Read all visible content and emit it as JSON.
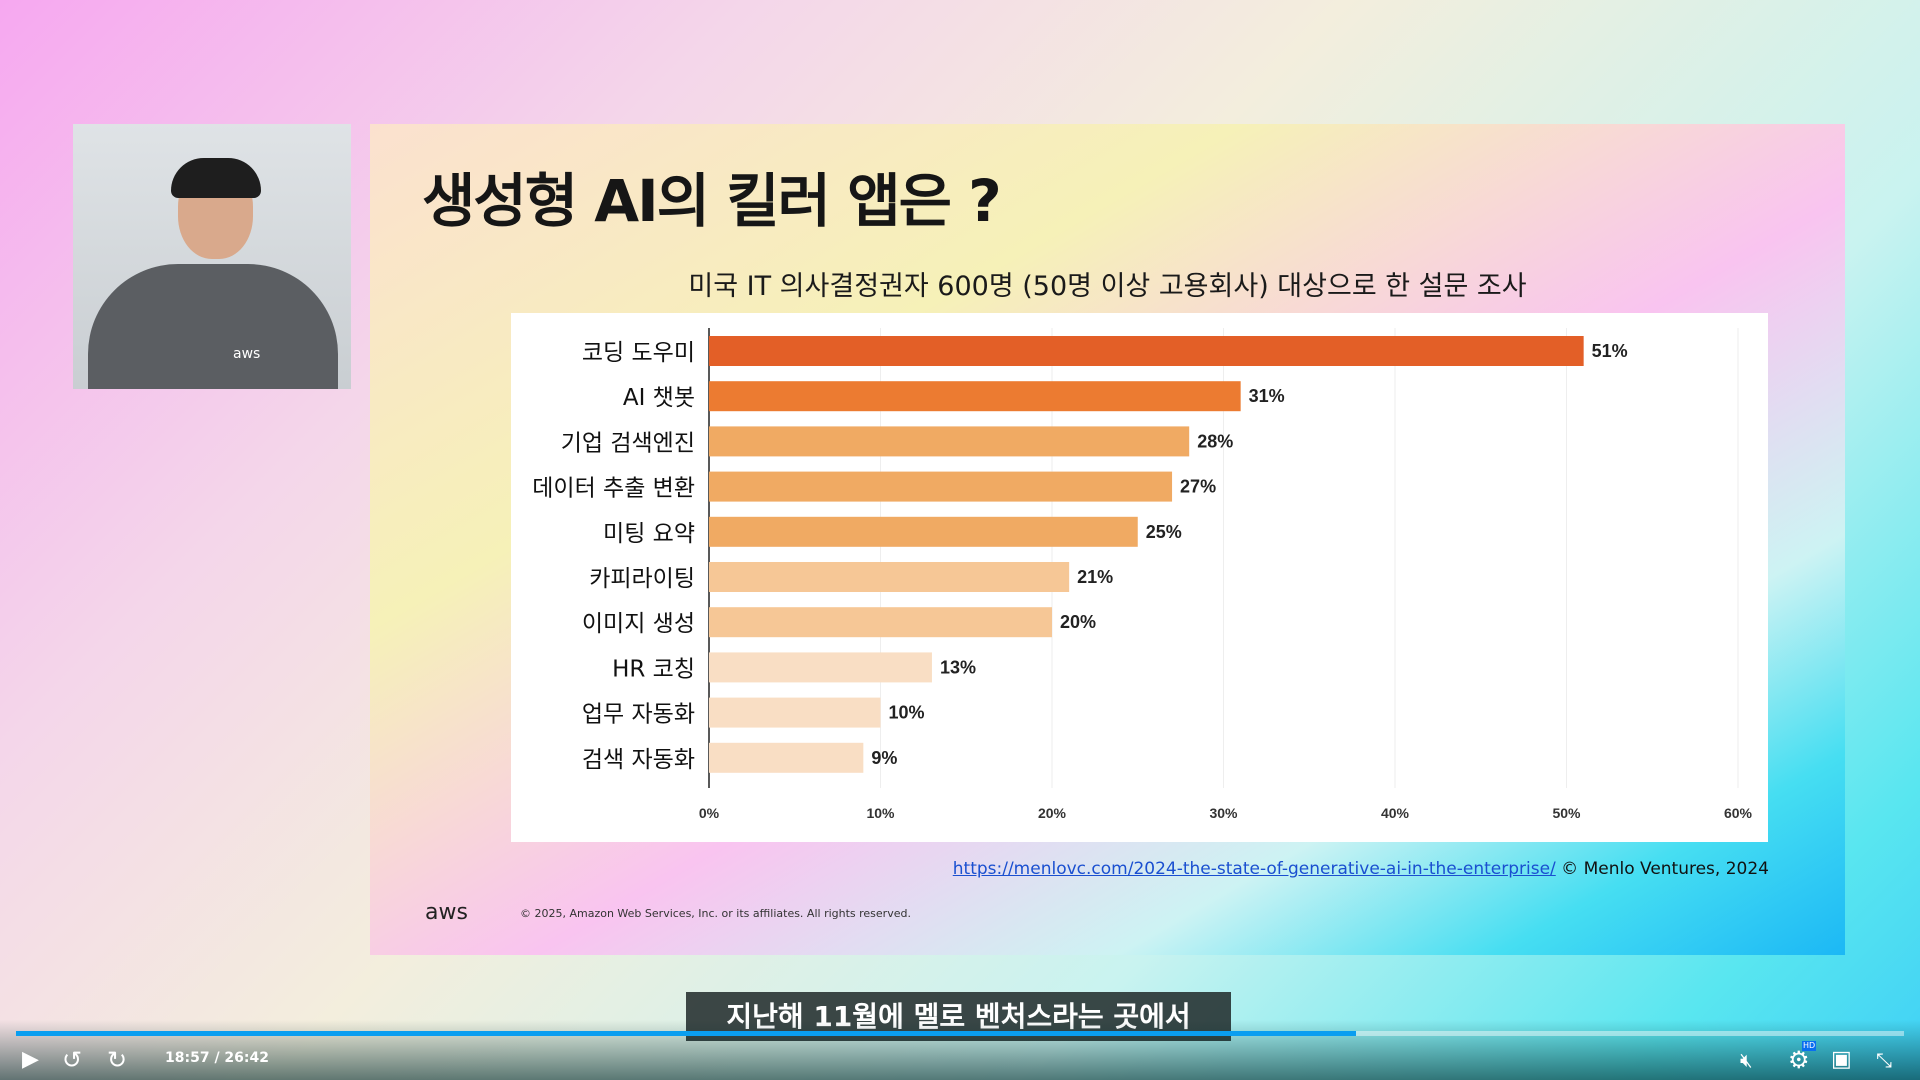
{
  "slide": {
    "title": "생성형 AI의 킬러 앱은 ?",
    "subtitle": "미국 IT 의사결정권자 600명 (50명 이상 고용회사) 대상으로 한 설문 조사",
    "source_link": "https://menlovc.com/2024-the-state-of-generative-ai-in-the-enterprise/",
    "source_credit": "© Menlo Ventures, 2024",
    "logo": "aws",
    "copyright": "© 2025, Amazon Web Services, Inc. or its affiliates. All rights reserved."
  },
  "webcam": {
    "shirt_logo": "aws"
  },
  "chart_data": {
    "type": "bar",
    "orientation": "horizontal",
    "categories": [
      "코딩 도우미",
      "AI 챗봇",
      "기업 검색엔진",
      "데이터 추출 변환",
      "미팅 요약",
      "카피라이팅",
      "이미지 생성",
      "HR 코칭",
      "업무 자동화",
      "검색 자동화"
    ],
    "values": [
      51,
      31,
      28,
      27,
      25,
      21,
      20,
      13,
      10,
      9
    ],
    "labels": [
      "51%",
      "31%",
      "28%",
      "27%",
      "25%",
      "21%",
      "20%",
      "13%",
      "10%",
      "9%"
    ],
    "colors": [
      "#e35f27",
      "#ec7b31",
      "#f0aa63",
      "#f0aa63",
      "#f0aa63",
      "#f6c796",
      "#f6c796",
      "#f9dec4",
      "#f9dec4",
      "#f9dec4"
    ],
    "xlim": [
      0,
      60
    ],
    "xticks": [
      "0%",
      "10%",
      "20%",
      "30%",
      "40%",
      "50%",
      "60%"
    ],
    "grid": true
  },
  "player": {
    "caption": "지난해 11월에 멜로 벤처스라는 곳에서",
    "time": "18:57 / 26:42",
    "progress_percent": 71.0,
    "quality_badge": "HD",
    "icons": [
      "play-icon",
      "rewind-10-icon",
      "forward-10-icon",
      "mute-icon",
      "settings-icon",
      "miniplayer-icon",
      "exit-fullscreen-icon"
    ],
    "accent": "#0a9ef0"
  }
}
